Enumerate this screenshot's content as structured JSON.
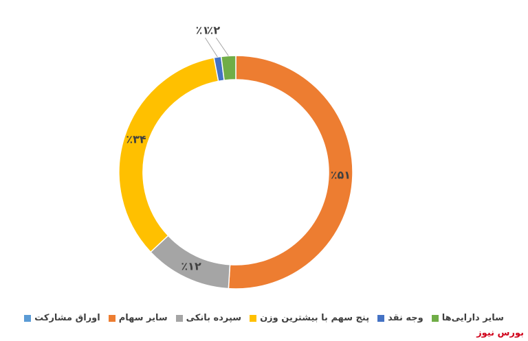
{
  "chart_data": {
    "type": "donut",
    "categories": [
      "اوراق مشارکت",
      "سایر سهام",
      "سپرده بانکی",
      "پنج سهم با بیشترین وزن",
      "وجه نقد",
      "سایر دارایی‌ها"
    ],
    "values": [
      0,
      51,
      12,
      34,
      1,
      2
    ],
    "value_labels": [
      null,
      "٪۵۱",
      "٪۱۲",
      "٪۳۴",
      "٪۱",
      "٪۲"
    ],
    "colors": [
      "#5b9bd5",
      "#ed7d31",
      "#a5a5a5",
      "#ffc000",
      "#4472c4",
      "#70ad47"
    ]
  },
  "watermark": "بورس نیوز"
}
